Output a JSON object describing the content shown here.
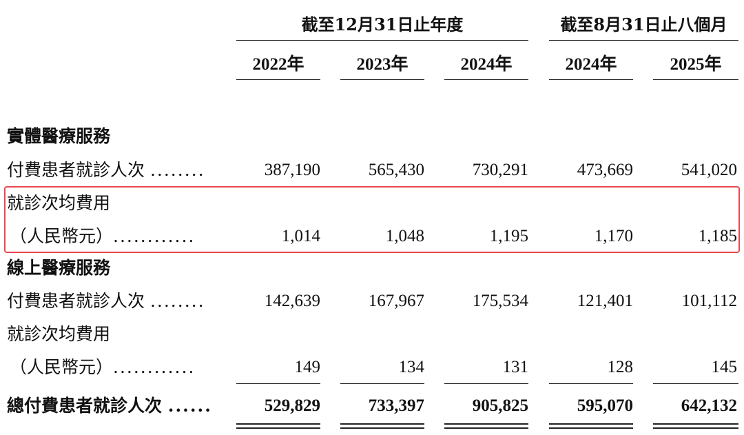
{
  "header": {
    "group1": "截至12月31日止年度",
    "group2": "截至8月31日止八個月",
    "years": [
      "2022年",
      "2023年",
      "2024年",
      "2024年",
      "2025年"
    ]
  },
  "sections": {
    "offline_title": "實體醫療服務",
    "offline_visits_label": "付費患者就診人次",
    "offline_visits_dots": "........",
    "offline_visits": [
      "387,190",
      "565,430",
      "730,291",
      "473,669",
      "541,020"
    ],
    "offline_avg_label1": "就診次均費用",
    "offline_avg_label2": "（人民幣元）",
    "offline_avg_dots": "............",
    "offline_avg": [
      "1,014",
      "1,048",
      "1,195",
      "1,170",
      "1,185"
    ],
    "online_title": "線上醫療服務",
    "online_visits_label": "付費患者就診人次",
    "online_visits_dots": "........",
    "online_visits": [
      "142,639",
      "167,967",
      "175,534",
      "121,401",
      "101,112"
    ],
    "online_avg_label1": "就診次均費用",
    "online_avg_label2": "（人民幣元）",
    "online_avg_dots": "............",
    "online_avg": [
      "149",
      "134",
      "131",
      "128",
      "145"
    ],
    "total_label": "總付費患者就診人次",
    "total_dots": "......",
    "total": [
      "529,829",
      "733,397",
      "905,825",
      "595,070",
      "642,132"
    ]
  },
  "colors": {
    "highlight": "#e8474f",
    "text": "#111111"
  }
}
